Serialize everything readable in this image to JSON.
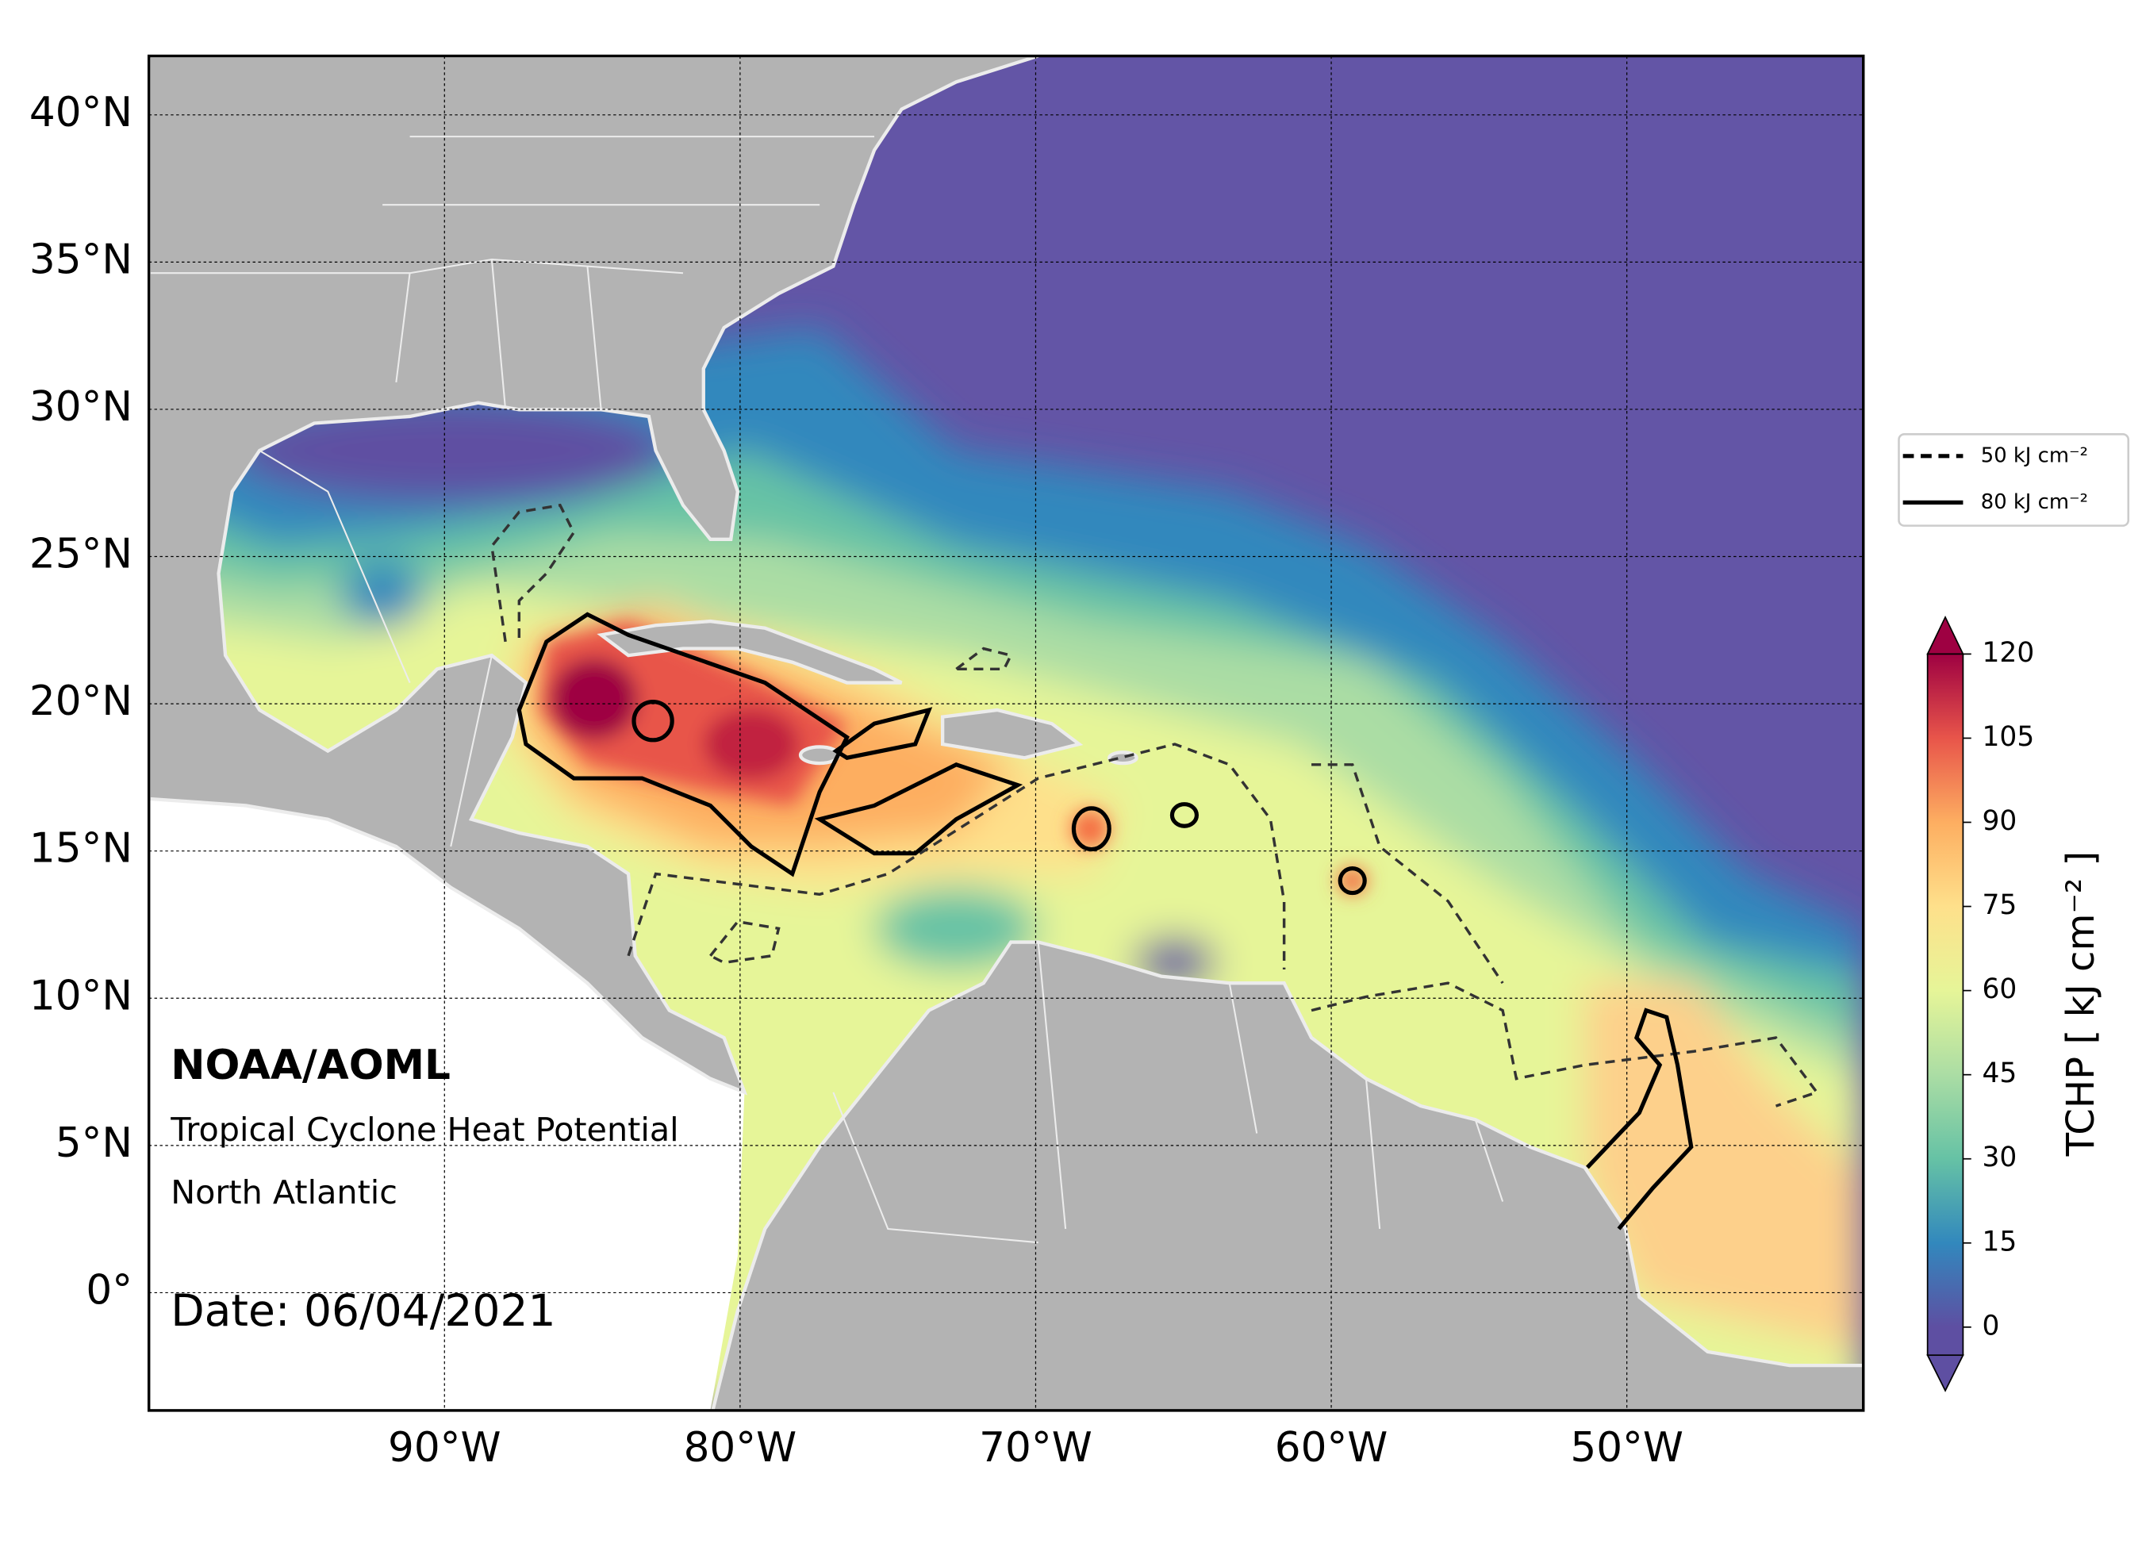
{
  "map": {
    "xlim": [
      -100,
      -42
    ],
    "ylim": [
      -4,
      42
    ],
    "xticks": [
      {
        "value": -90,
        "label": "90°W"
      },
      {
        "value": -80,
        "label": "80°W"
      },
      {
        "value": -70,
        "label": "70°W"
      },
      {
        "value": -60,
        "label": "60°W"
      },
      {
        "value": -50,
        "label": "50°W"
      }
    ],
    "yticks": [
      {
        "value": 0,
        "label": "0°"
      },
      {
        "value": 5,
        "label": "5°N"
      },
      {
        "value": 10,
        "label": "10°N"
      },
      {
        "value": 15,
        "label": "15°N"
      },
      {
        "value": 20,
        "label": "20°N"
      },
      {
        "value": 25,
        "label": "25°N"
      },
      {
        "value": 30,
        "label": "30°N"
      },
      {
        "value": 35,
        "label": "35°N"
      },
      {
        "value": 40,
        "label": "40°N"
      }
    ],
    "grid": true
  },
  "annotations": {
    "org": "NOAA/AOML",
    "product": "Tropical Cyclone Heat Potential",
    "region": "North Atlantic",
    "date": "Date: 06/04/2021"
  },
  "legend": {
    "entries": [
      {
        "label": "50 kJ cm⁻²",
        "style": "dashed"
      },
      {
        "label": "80 kJ cm⁻²",
        "style": "solid"
      }
    ]
  },
  "colorbar": {
    "label": "TCHP [ kJ cm⁻² ]",
    "lim": [
      -5,
      120
    ],
    "ticks": [
      0,
      15,
      30,
      45,
      60,
      75,
      90,
      105,
      120
    ],
    "colors": [
      "#5e4fa2",
      "#3288bd",
      "#66c2a5",
      "#abdda4",
      "#e6f598",
      "#fee08b",
      "#fdae61",
      "#e8554a",
      "#9e0142"
    ]
  }
}
